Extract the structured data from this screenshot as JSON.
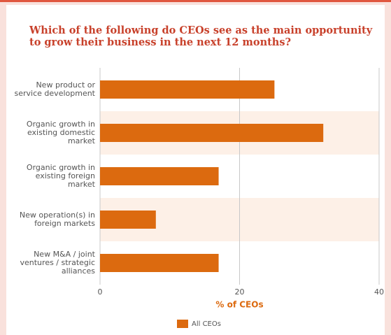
{
  "chart_data": {
    "type": "bar",
    "orientation": "horizontal",
    "title": "Which of the following do CEOs see as the main opportunity to grow their business in the next 12 months?",
    "categories": [
      "New product or service development",
      "Organic growth in existing domestic market",
      "Organic growth in existing foreign market",
      "New operation(s) in foreign markets",
      "New M&A / joint ventures / strategic alliances"
    ],
    "series": [
      {
        "name": "All CEOs",
        "color": "#dc6a0f",
        "values": [
          25,
          32,
          17,
          8,
          17
        ]
      }
    ],
    "xlabel": "% of CEOs",
    "xlim": [
      0,
      40
    ],
    "xticks": [
      0,
      20,
      40
    ],
    "grid": true,
    "legend": "bottom"
  }
}
